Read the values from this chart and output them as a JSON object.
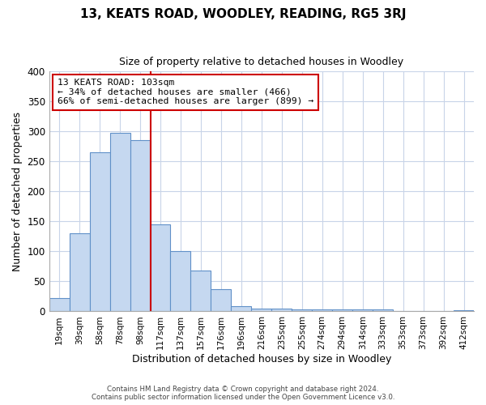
{
  "title": "13, KEATS ROAD, WOODLEY, READING, RG5 3RJ",
  "subtitle": "Size of property relative to detached houses in Woodley",
  "xlabel": "Distribution of detached houses by size in Woodley",
  "ylabel": "Number of detached properties",
  "bar_values": [
    22,
    130,
    265,
    298,
    285,
    145,
    100,
    68,
    37,
    9,
    5,
    4,
    3,
    3,
    3,
    3,
    3,
    0,
    0,
    0,
    2
  ],
  "bin_labels": [
    "19sqm",
    "39sqm",
    "58sqm",
    "78sqm",
    "98sqm",
    "117sqm",
    "137sqm",
    "157sqm",
    "176sqm",
    "196sqm",
    "216sqm",
    "235sqm",
    "255sqm",
    "274sqm",
    "294sqm",
    "314sqm",
    "333sqm",
    "353sqm",
    "373sqm",
    "392sqm",
    "412sqm"
  ],
  "bar_color": "#c5d8f0",
  "bar_edge_color": "#6090c8",
  "reference_line_x": 4.5,
  "reference_line_color": "#cc0000",
  "ylim": [
    0,
    400
  ],
  "yticks": [
    0,
    50,
    100,
    150,
    200,
    250,
    300,
    350,
    400
  ],
  "annotation_text": "13 KEATS ROAD: 103sqm\n← 34% of detached houses are smaller (466)\n66% of semi-detached houses are larger (899) →",
  "annotation_box_color": "#ffffff",
  "annotation_box_edge": "#cc0000",
  "footer_line1": "Contains HM Land Registry data © Crown copyright and database right 2024.",
  "footer_line2": "Contains public sector information licensed under the Open Government Licence v3.0.",
  "background_color": "#ffffff",
  "grid_color": "#c8d4e8"
}
